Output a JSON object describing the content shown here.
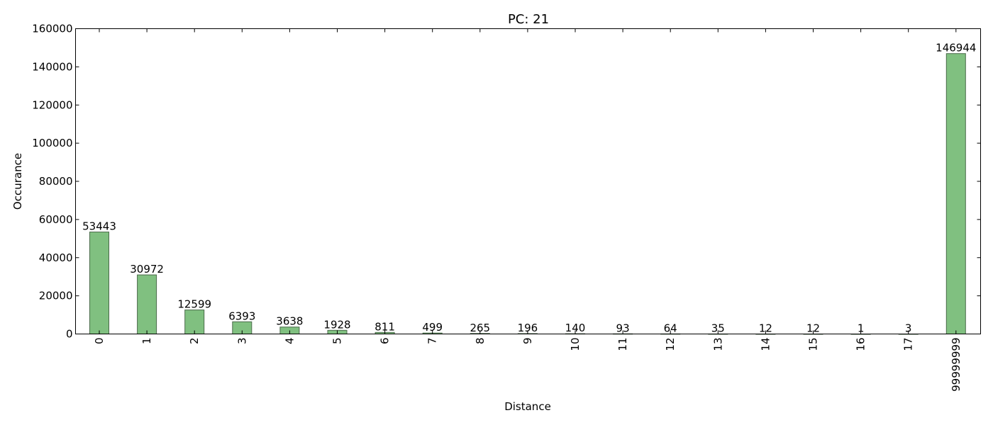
{
  "chart_data": {
    "type": "bar",
    "title": "PC: 21",
    "xlabel": "Distance",
    "ylabel": "Occurance",
    "categories": [
      "0",
      "1",
      "2",
      "3",
      "4",
      "5",
      "6",
      "7",
      "8",
      "9",
      "10",
      "11",
      "12",
      "13",
      "14",
      "15",
      "16",
      "17",
      "99999999"
    ],
    "values": [
      53443,
      30972,
      12599,
      6393,
      3638,
      1928,
      811,
      499,
      265,
      196,
      140,
      93,
      64,
      35,
      12,
      12,
      1,
      3,
      146944
    ],
    "data_labels": [
      "53443",
      "30972",
      "12599",
      "6393",
      "3638",
      "1928",
      "811",
      "499",
      "265",
      "196",
      "140",
      "93",
      "64",
      "35",
      "12",
      "12",
      "1",
      "3",
      "146944"
    ],
    "ylim": [
      0,
      160000
    ],
    "yticks": [
      0,
      20000,
      40000,
      60000,
      80000,
      100000,
      120000,
      140000,
      160000
    ],
    "ytick_labels": [
      "0",
      "20000",
      "40000",
      "60000",
      "80000",
      "100000",
      "120000",
      "140000",
      "160000"
    ],
    "grid": false,
    "colors": {
      "bar_fill": "#80c080",
      "bar_edge": "#4a6a4a"
    }
  }
}
